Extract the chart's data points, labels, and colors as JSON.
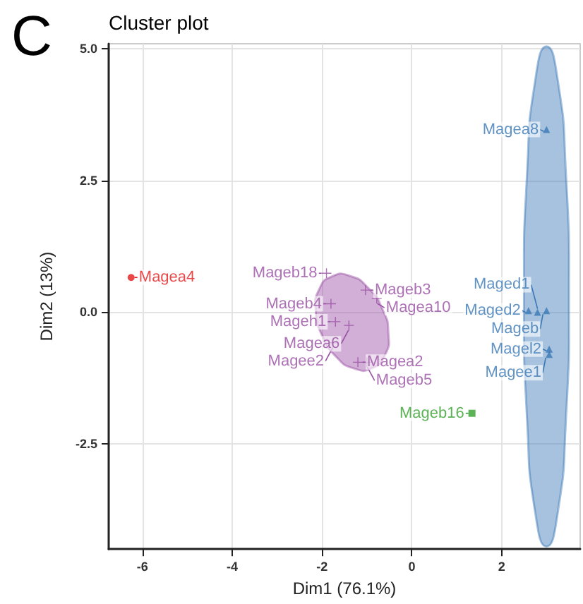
{
  "chart_data": {
    "type": "scatter",
    "title": "Cluster plot",
    "xlabel": "Dim1 (76.1%)",
    "ylabel": "Dim2 (13%)",
    "annotations": [
      "C"
    ],
    "xlim": [
      -6.75,
      3.75
    ],
    "xticks": [
      -6,
      -4,
      -2,
      0,
      2
    ],
    "ylim": [
      -4.5,
      5.1
    ],
    "yticks": [
      {
        "value": 5,
        "label": "5.0"
      },
      {
        "value": 2.5,
        "label": "2.5"
      },
      {
        "value": 0,
        "label": "0.0"
      },
      {
        "value": -2.5,
        "label": "-2.5"
      }
    ],
    "grid": true,
    "series": [
      {
        "type": "area",
        "color": "#3a78b5",
        "x": [
          3.0,
          3.25,
          3.43,
          3.5,
          3.43,
          3.25,
          3.0,
          2.75,
          2.57,
          2.5,
          2.57,
          2.75
        ],
        "values": [
          5.05,
          4.41,
          2.68,
          0.3,
          -2.08,
          -3.81,
          -4.45,
          -3.81,
          -2.08,
          0.3,
          2.68,
          4.41
        ]
      },
      {
        "type": "area",
        "color": "#984ea3",
        "x": [
          -1.78,
          -1.38,
          -0.97,
          -0.655,
          -0.52,
          -0.6,
          -0.88,
          -1.28,
          -1.69,
          -2.0,
          -2.14,
          -2.06
        ],
        "values": [
          0.68,
          0.69,
          0.46,
          0.06,
          -0.41,
          -0.82,
          -1.06,
          -1.07,
          -0.84,
          -0.44,
          0.03,
          0.44
        ]
      },
      {
        "marker": "circle",
        "color": "#e41a1c",
        "x": [
          -6.25
        ],
        "values": [
          0.66
        ],
        "value_labels": [
          "Magea4"
        ]
      },
      {
        "marker": "cross",
        "color": "#984ea3",
        "x": [
          -1.9,
          -1.03,
          -1.8,
          -0.78,
          -1.7,
          -1.4,
          -1.75,
          -1.2,
          -1.0
        ],
        "values": [
          0.74,
          0.42,
          0.16,
          0.26,
          -0.18,
          -0.25,
          -0.58,
          -0.95,
          -0.95
        ],
        "value_labels": [
          "Mageb18",
          "Mageb3",
          "Mageb4",
          "Magea10",
          "Mageh1",
          "Magea6",
          "Magee2",
          "Magea2",
          "Mageb5"
        ]
      },
      {
        "marker": "triangle",
        "color": "#3a78b5",
        "x": [
          3.0,
          2.6,
          2.8,
          3.0,
          3.06,
          3.06
        ],
        "values": [
          3.47,
          0.03,
          0.0,
          0.03,
          -0.7,
          -0.8
        ],
        "value_labels": [
          "Magea8",
          "Maged2",
          "Maged1",
          "Mageb",
          "Magel2",
          "Magee1"
        ]
      },
      {
        "marker": "square",
        "color": "#33a02c",
        "x": [
          1.34
        ],
        "values": [
          -1.92
        ],
        "value_labels": [
          "Mageb16"
        ]
      }
    ]
  }
}
